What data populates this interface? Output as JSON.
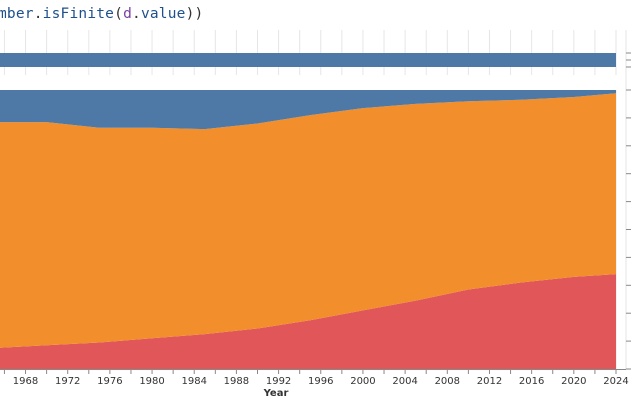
{
  "code_cell": {
    "tokens": [
      {
        "text": "mber",
        "cls": "tok-ident"
      },
      {
        "text": ".",
        "cls": "tok-punc"
      },
      {
        "text": "isFinite",
        "cls": "tok-method"
      },
      {
        "text": "(",
        "cls": "tok-punc"
      },
      {
        "text": "d",
        "cls": "tok-arg"
      },
      {
        "text": ".",
        "cls": "tok-punc"
      },
      {
        "text": "value",
        "cls": "tok-prop"
      },
      {
        "text": "))",
        "cls": "tok-punc"
      }
    ]
  },
  "colors": {
    "bar": "#4e79a7",
    "series_top": "#4e79a7",
    "series_middle": "#f28e2b",
    "series_bottom": "#e15759",
    "grid": "#e6e6e6",
    "axis": "#888888"
  },
  "chart_data": [
    {
      "type": "bar",
      "orientation": "horizontal",
      "note_visible": "single stacked bar, partially visible, spans full axis",
      "values": [
        1.0
      ],
      "xlim": [
        0,
        1.0
      ]
    },
    {
      "type": "area",
      "stacked": "normalize",
      "xlabel": "Year",
      "ylabel": "",
      "x_tick_labels": [
        "1968",
        "1972",
        "1976",
        "1980",
        "1984",
        "1988",
        "1992",
        "1996",
        "2000",
        "2004",
        "2008",
        "2012",
        "2016",
        "2020",
        "2024"
      ],
      "xlim": [
        1965.2,
        2024
      ],
      "ylim": [
        0,
        1
      ],
      "grid": true,
      "x": [
        1965,
        1970,
        1975,
        1980,
        1985,
        1990,
        1995,
        2000,
        2005,
        2010,
        2015,
        2020,
        2024
      ],
      "series": [
        {
          "key": "bottom",
          "values": [
            0.075,
            0.085,
            0.095,
            0.11,
            0.125,
            0.145,
            0.175,
            0.21,
            0.245,
            0.285,
            0.31,
            0.33,
            0.34
          ]
        },
        {
          "key": "middle",
          "values": [
            0.81,
            0.8,
            0.77,
            0.755,
            0.735,
            0.735,
            0.735,
            0.725,
            0.705,
            0.675,
            0.655,
            0.645,
            0.648
          ]
        },
        {
          "key": "top",
          "values": [
            0.115,
            0.115,
            0.135,
            0.135,
            0.14,
            0.12,
            0.09,
            0.065,
            0.05,
            0.04,
            0.035,
            0.025,
            0.012
          ]
        }
      ]
    }
  ]
}
